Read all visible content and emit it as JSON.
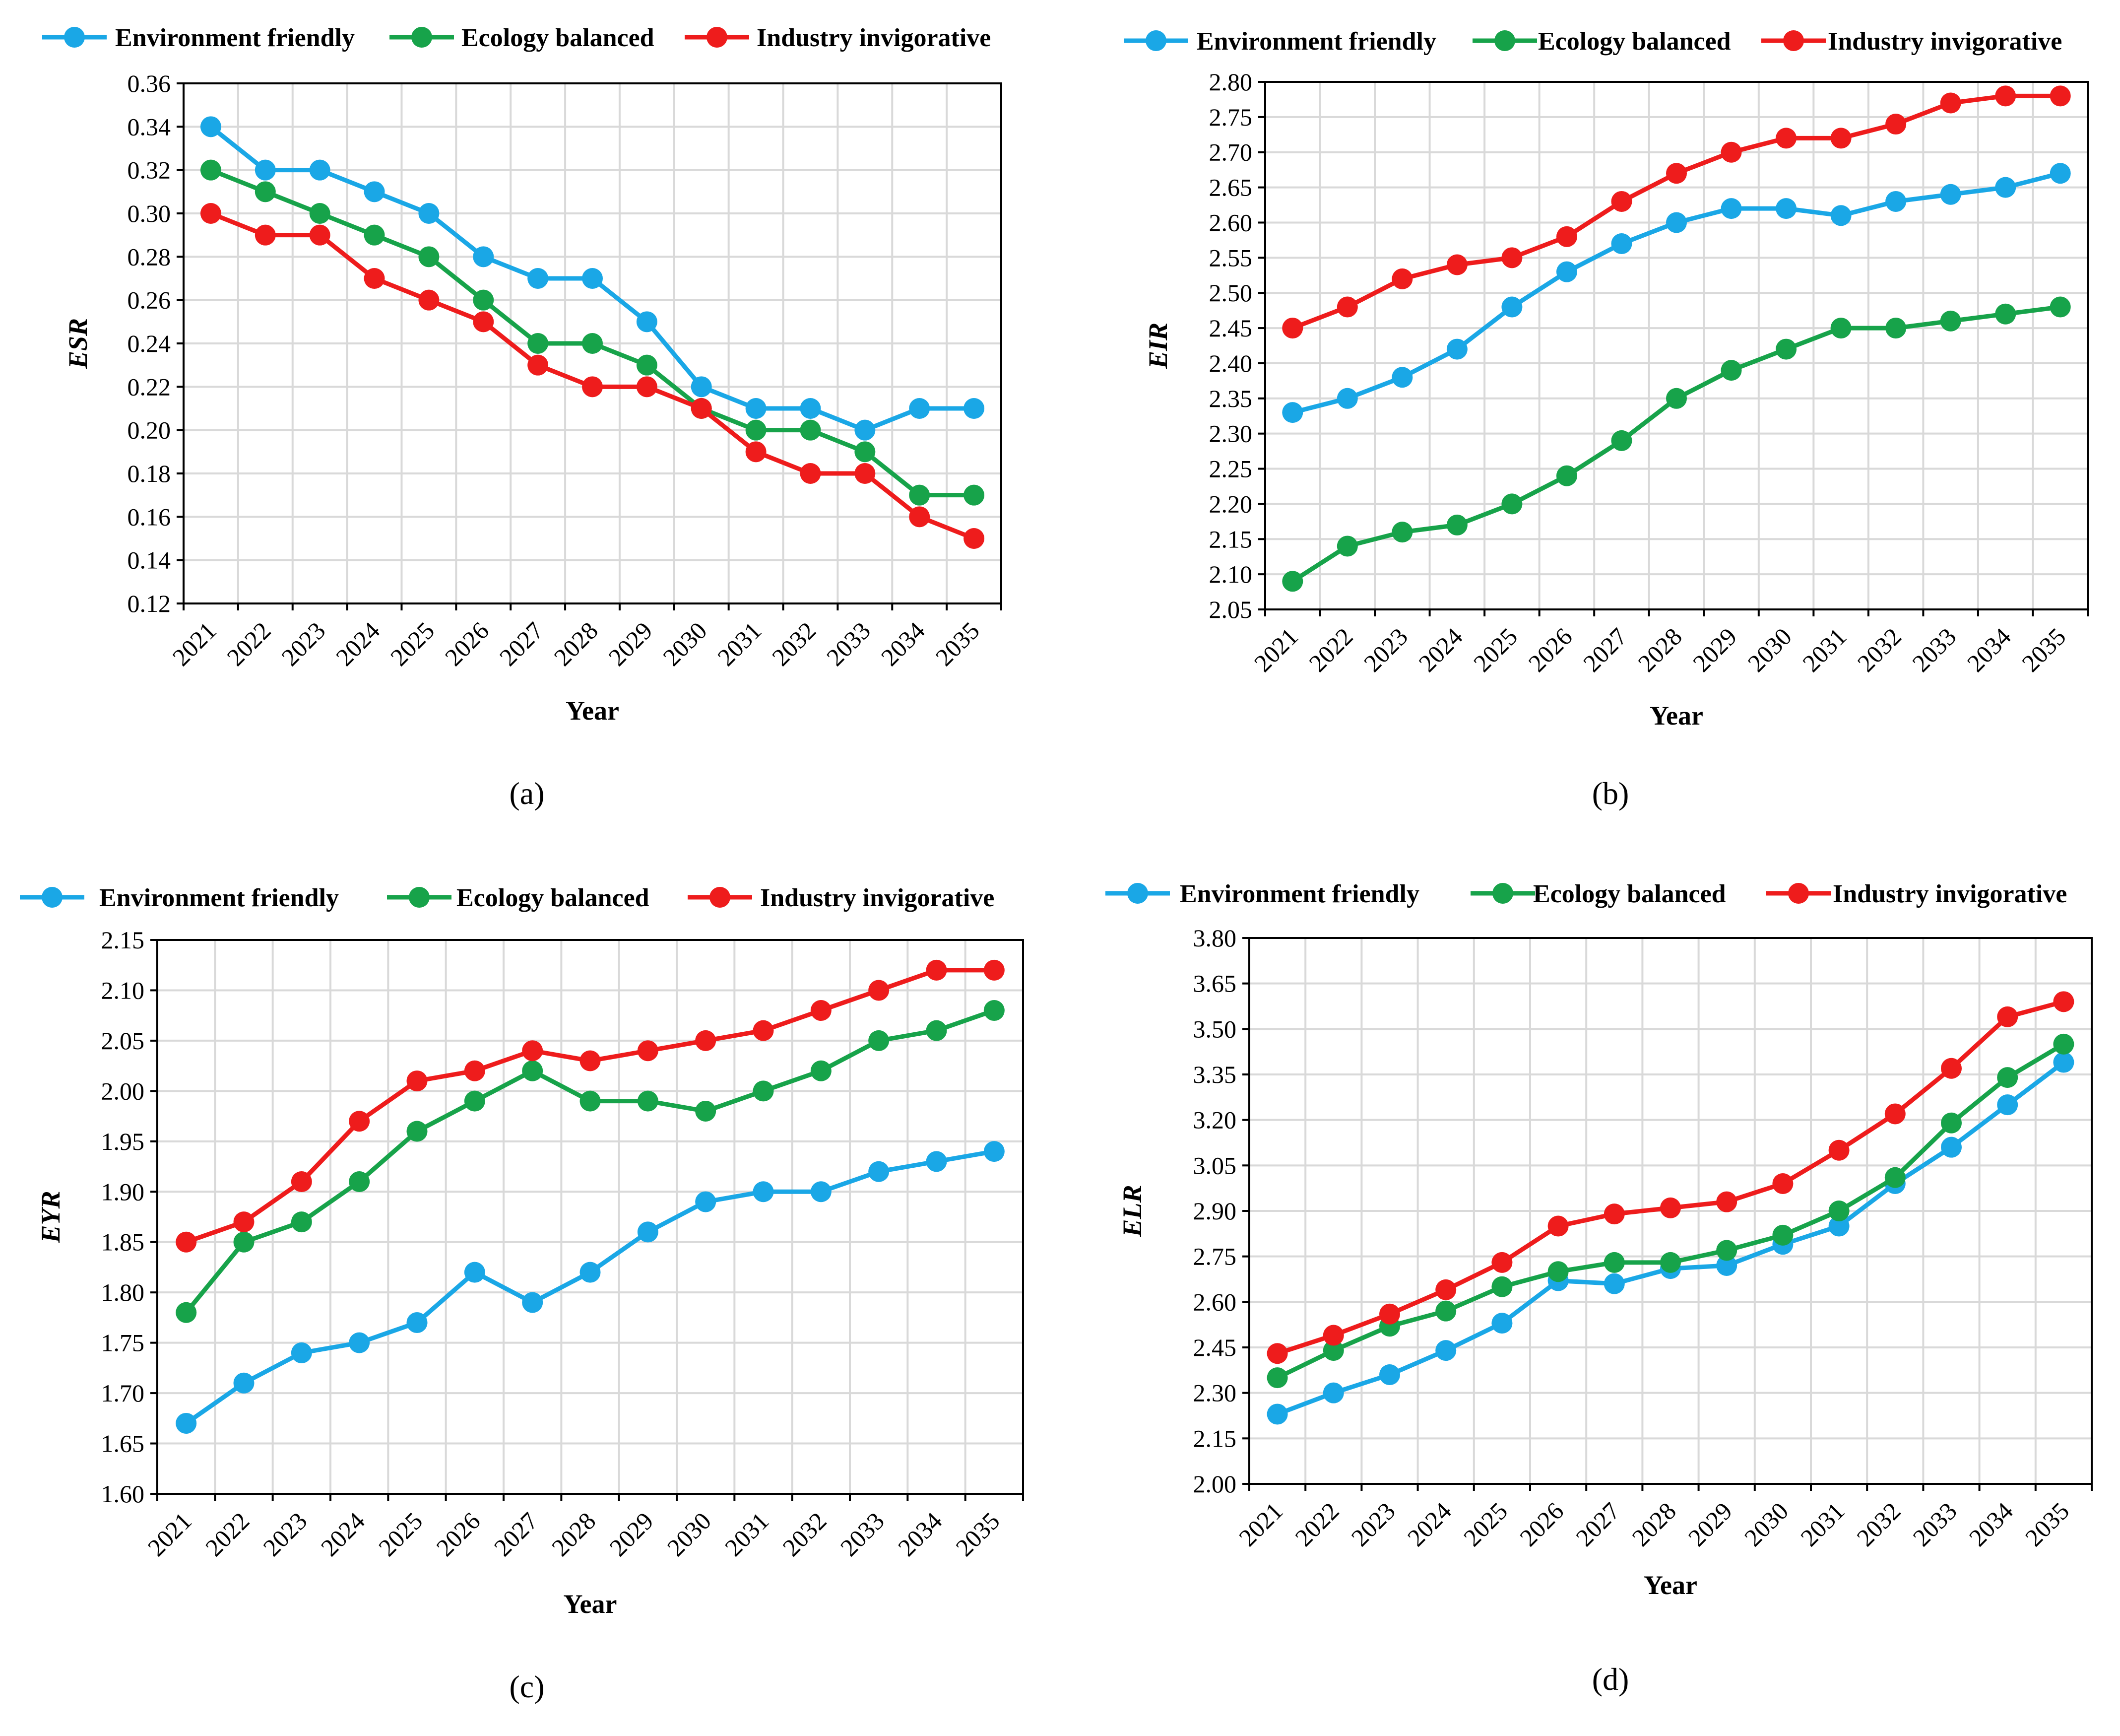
{
  "colors": {
    "environment": "#1aa7e6",
    "ecology": "#17a34a",
    "industry": "#ee1c1c",
    "grid": "#d9d9d9"
  },
  "chart_data": [
    {
      "type": "line",
      "panel": "a",
      "caption": "(a)",
      "xlabel": "Year",
      "ylabel": "ESR",
      "categories": [
        "2021",
        "2022",
        "2023",
        "2024",
        "2025",
        "2026",
        "2027",
        "2028",
        "2029",
        "2030",
        "2031",
        "2032",
        "2033",
        "2034",
        "2035"
      ],
      "ylim": [
        0.12,
        0.36
      ],
      "ystep": 0.02,
      "ydecimals": 2,
      "grid": true,
      "legend": "top",
      "series": [
        {
          "name": "Environment friendly",
          "color_key": "environment",
          "values": [
            0.34,
            0.32,
            0.32,
            0.31,
            0.3,
            0.28,
            0.27,
            0.27,
            0.25,
            0.22,
            0.21,
            0.21,
            0.2,
            0.21,
            0.21
          ]
        },
        {
          "name": "Ecology balanced",
          "color_key": "ecology",
          "values": [
            0.32,
            0.31,
            0.3,
            0.29,
            0.28,
            0.26,
            0.24,
            0.24,
            0.23,
            0.21,
            0.2,
            0.2,
            0.19,
            0.17,
            0.17
          ]
        },
        {
          "name": "Industry invigorative",
          "color_key": "industry",
          "values": [
            0.3,
            0.29,
            0.29,
            0.27,
            0.26,
            0.25,
            0.23,
            0.22,
            0.22,
            0.21,
            0.19,
            0.18,
            0.18,
            0.16,
            0.15
          ]
        }
      ]
    },
    {
      "type": "line",
      "panel": "b",
      "caption": "(b)",
      "xlabel": "Year",
      "ylabel": "EIR",
      "categories": [
        "2021",
        "2022",
        "2023",
        "2024",
        "2025",
        "2026",
        "2027",
        "2028",
        "2029",
        "2030",
        "2031",
        "2032",
        "2033",
        "2034",
        "2035"
      ],
      "ylim": [
        2.05,
        2.8
      ],
      "ystep": 0.05,
      "ydecimals": 2,
      "grid": true,
      "legend": "top",
      "series": [
        {
          "name": "Environment friendly",
          "color_key": "environment",
          "values": [
            2.33,
            2.35,
            2.38,
            2.42,
            2.48,
            2.53,
            2.57,
            2.6,
            2.62,
            2.62,
            2.61,
            2.63,
            2.64,
            2.65,
            2.67
          ]
        },
        {
          "name": "Ecology balanced",
          "color_key": "ecology",
          "values": [
            2.09,
            2.14,
            2.16,
            2.17,
            2.2,
            2.24,
            2.29,
            2.35,
            2.39,
            2.42,
            2.45,
            2.45,
            2.46,
            2.47,
            2.48
          ]
        },
        {
          "name": "Industry invigorative",
          "color_key": "industry",
          "values": [
            2.45,
            2.48,
            2.52,
            2.54,
            2.55,
            2.58,
            2.63,
            2.67,
            2.7,
            2.72,
            2.72,
            2.74,
            2.77,
            2.78,
            2.78
          ]
        }
      ]
    },
    {
      "type": "line",
      "panel": "c",
      "caption": "(c)",
      "xlabel": "Year",
      "ylabel": "EYR",
      "categories": [
        "2021",
        "2022",
        "2023",
        "2024",
        "2025",
        "2026",
        "2027",
        "2028",
        "2029",
        "2030",
        "2031",
        "2032",
        "2033",
        "2034",
        "2035"
      ],
      "ylim": [
        1.6,
        2.15
      ],
      "ystep": 0.05,
      "ydecimals": 2,
      "grid": true,
      "legend": "top",
      "series": [
        {
          "name": "Environment friendly",
          "color_key": "environment",
          "values": [
            1.67,
            1.71,
            1.74,
            1.75,
            1.77,
            1.82,
            1.79,
            1.82,
            1.86,
            1.89,
            1.9,
            1.9,
            1.92,
            1.93,
            1.94
          ]
        },
        {
          "name": "Ecology balanced",
          "color_key": "ecology",
          "values": [
            1.78,
            1.85,
            1.87,
            1.91,
            1.96,
            1.99,
            2.02,
            1.99,
            1.99,
            1.98,
            2.0,
            2.02,
            2.05,
            2.06,
            2.08
          ]
        },
        {
          "name": "Industry invigorative",
          "color_key": "industry",
          "values": [
            1.85,
            1.87,
            1.91,
            1.97,
            2.01,
            2.02,
            2.04,
            2.03,
            2.04,
            2.05,
            2.06,
            2.08,
            2.1,
            2.12,
            2.12
          ]
        }
      ]
    },
    {
      "type": "line",
      "panel": "d",
      "caption": "(d)",
      "xlabel": "Year",
      "ylabel": "ELR",
      "categories": [
        "2021",
        "2022",
        "2023",
        "2024",
        "2025",
        "2026",
        "2027",
        "2028",
        "2029",
        "2030",
        "2031",
        "2032",
        "2033",
        "2034",
        "2035"
      ],
      "ylim": [
        2.0,
        3.8
      ],
      "ystep": 0.15,
      "ydecimals": 2,
      "grid": true,
      "legend": "top",
      "series": [
        {
          "name": "Environment friendly",
          "color_key": "environment",
          "values": [
            2.23,
            2.3,
            2.36,
            2.44,
            2.53,
            2.67,
            2.66,
            2.71,
            2.72,
            2.79,
            2.85,
            2.99,
            3.11,
            3.25,
            3.39
          ]
        },
        {
          "name": "Ecology balanced",
          "color_key": "ecology",
          "values": [
            2.35,
            2.44,
            2.52,
            2.57,
            2.65,
            2.7,
            2.73,
            2.73,
            2.77,
            2.82,
            2.9,
            3.01,
            3.19,
            3.34,
            3.45
          ]
        },
        {
          "name": "Industry invigorative",
          "color_key": "industry",
          "values": [
            2.43,
            2.49,
            2.56,
            2.64,
            2.73,
            2.85,
            2.89,
            2.91,
            2.93,
            2.99,
            3.1,
            3.22,
            3.37,
            3.54,
            3.59
          ]
        }
      ]
    }
  ]
}
